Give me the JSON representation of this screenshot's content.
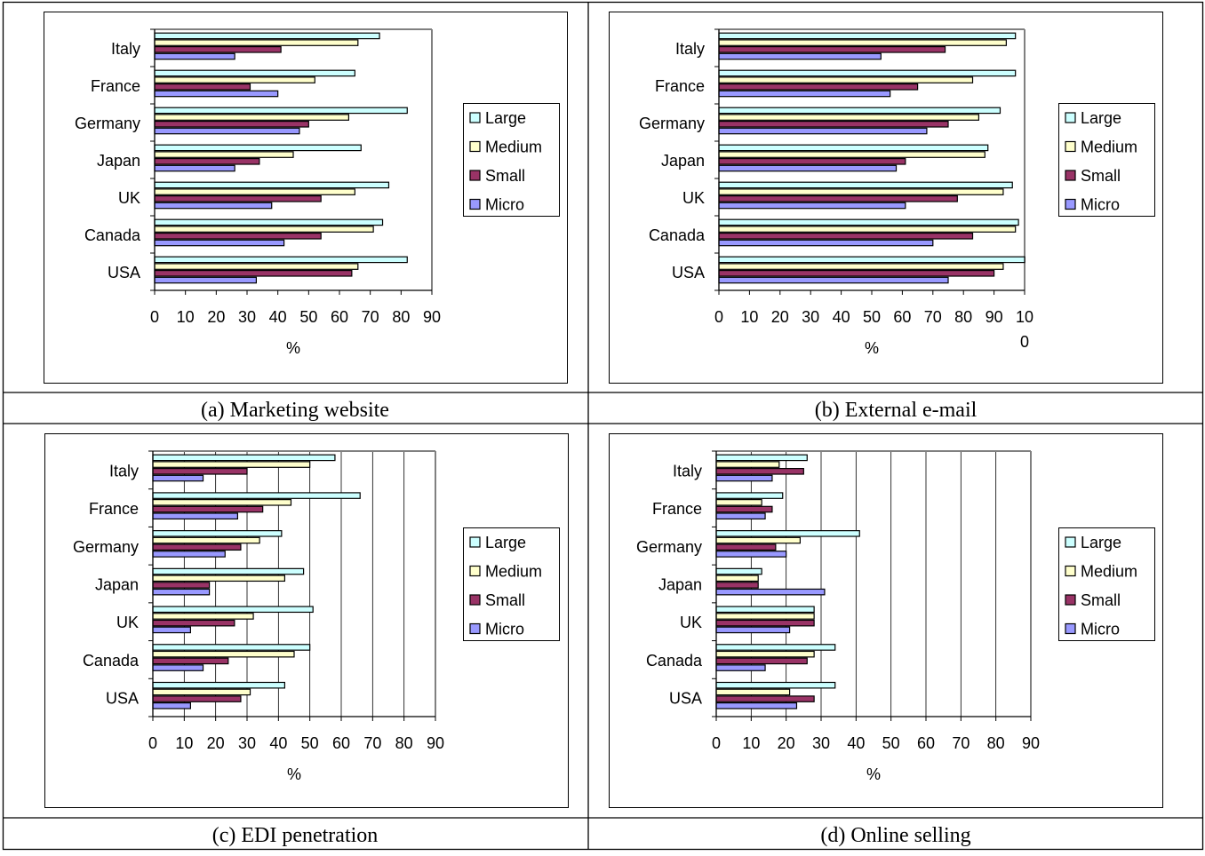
{
  "legend": [
    {
      "label": "Large",
      "color": "#ccffff"
    },
    {
      "label": "Medium",
      "color": "#ffffcc"
    },
    {
      "label": "Small",
      "color": "#993366"
    },
    {
      "label": "Micro",
      "color": "#9999ff"
    }
  ],
  "chart_data": [
    {
      "type": "bar",
      "orientation": "horizontal",
      "caption": "(a) Marketing website",
      "xlabel": "%",
      "xlim": [
        0,
        90
      ],
      "xticks": [
        "0",
        "10",
        "20",
        "30",
        "40",
        "50",
        "60",
        "70",
        "80",
        "90"
      ],
      "categories": [
        "Italy",
        "France",
        "Germany",
        "Japan",
        "UK",
        "Canada",
        "USA"
      ],
      "series": [
        {
          "name": "Large",
          "values": [
            73,
            65,
            82,
            67,
            76,
            74,
            82
          ]
        },
        {
          "name": "Medium",
          "values": [
            66,
            52,
            63,
            45,
            65,
            71,
            66
          ]
        },
        {
          "name": "Small",
          "values": [
            41,
            31,
            50,
            34,
            54,
            54,
            64
          ]
        },
        {
          "name": "Micro",
          "values": [
            26,
            40,
            47,
            26,
            38,
            42,
            33
          ]
        }
      ],
      "grid": false,
      "legend_position": "right"
    },
    {
      "type": "bar",
      "orientation": "horizontal",
      "caption": "(b) External e-mail",
      "xlabel": "%",
      "xlim": [
        0,
        100
      ],
      "xticks": [
        "0",
        "10",
        "20",
        "30",
        "40",
        "50",
        "60",
        "70",
        "80",
        "90",
        "10\n0"
      ],
      "categories": [
        "Italy",
        "France",
        "Germany",
        "Japan",
        "UK",
        "Canada",
        "USA"
      ],
      "series": [
        {
          "name": "Large",
          "values": [
            97,
            97,
            92,
            88,
            96,
            98,
            100
          ]
        },
        {
          "name": "Medium",
          "values": [
            94,
            83,
            85,
            87,
            93,
            97,
            93
          ]
        },
        {
          "name": "Small",
          "values": [
            74,
            65,
            75,
            61,
            78,
            83,
            90
          ]
        },
        {
          "name": "Micro",
          "values": [
            53,
            56,
            68,
            58,
            61,
            70,
            75
          ]
        }
      ],
      "grid": false,
      "legend_position": "right"
    },
    {
      "type": "bar",
      "orientation": "horizontal",
      "caption": "(c) EDI penetration",
      "xlabel": "%",
      "xlim": [
        0,
        90
      ],
      "xticks": [
        "0",
        "10",
        "20",
        "30",
        "40",
        "50",
        "60",
        "70",
        "80",
        "90"
      ],
      "categories": [
        "Italy",
        "France",
        "Germany",
        "Japan",
        "UK",
        "Canada",
        "USA"
      ],
      "series": [
        {
          "name": "Large",
          "values": [
            58,
            66,
            41,
            48,
            51,
            50,
            42
          ]
        },
        {
          "name": "Medium",
          "values": [
            50,
            44,
            34,
            42,
            32,
            45,
            31
          ]
        },
        {
          "name": "Small",
          "values": [
            30,
            35,
            28,
            18,
            26,
            24,
            28
          ]
        },
        {
          "name": "Micro",
          "values": [
            16,
            27,
            23,
            18,
            12,
            16,
            12
          ]
        }
      ],
      "grid": true,
      "legend_position": "right"
    },
    {
      "type": "bar",
      "orientation": "horizontal",
      "caption": "(d) Online selling",
      "xlabel": "%",
      "xlim": [
        0,
        90
      ],
      "xticks": [
        "0",
        "10",
        "20",
        "30",
        "40",
        "50",
        "60",
        "70",
        "80",
        "90"
      ],
      "categories": [
        "Italy",
        "France",
        "Germany",
        "Japan",
        "UK",
        "Canada",
        "USA"
      ],
      "series": [
        {
          "name": "Large",
          "values": [
            26,
            19,
            41,
            13,
            28,
            34,
            34
          ]
        },
        {
          "name": "Medium",
          "values": [
            18,
            13,
            24,
            12,
            28,
            28,
            21
          ]
        },
        {
          "name": "Small",
          "values": [
            25,
            16,
            17,
            12,
            28,
            26,
            28
          ]
        },
        {
          "name": "Micro",
          "values": [
            16,
            14,
            20,
            31,
            21,
            14,
            23
          ]
        }
      ],
      "grid": true,
      "legend_position": "right"
    }
  ]
}
